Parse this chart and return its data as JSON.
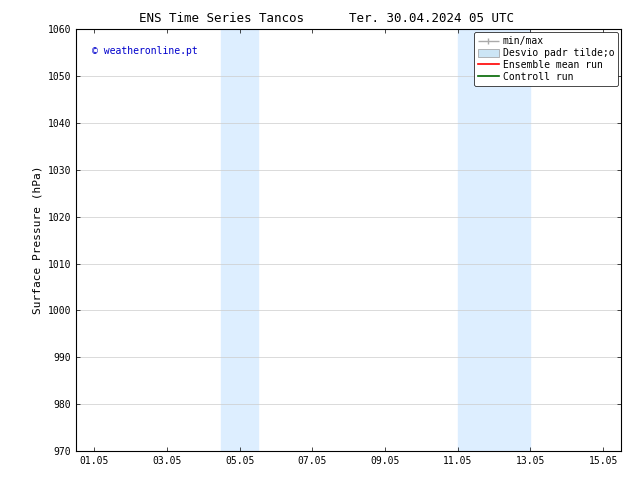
{
  "title": "ENS Time Series Tancos",
  "title2": "Ter. 30.04.2024 05 UTC",
  "ylabel": "Surface Pressure (hPa)",
  "ylim": [
    970,
    1060
  ],
  "yticks": [
    970,
    980,
    990,
    1000,
    1010,
    1020,
    1030,
    1040,
    1050,
    1060
  ],
  "xlim": [
    0.5,
    15.5
  ],
  "xtick_labels": [
    "01.05",
    "03.05",
    "05.05",
    "07.05",
    "09.05",
    "11.05",
    "13.05",
    "15.05"
  ],
  "xtick_positions": [
    1,
    3,
    5,
    7,
    9,
    11,
    13,
    15
  ],
  "shaded_regions": [
    {
      "xmin": 4.5,
      "xmax": 5.5,
      "color": "#ddeeff"
    },
    {
      "xmin": 11.0,
      "xmax": 13.0,
      "color": "#ddeeff"
    }
  ],
  "watermark": "© weatheronline.pt",
  "watermark_color": "#0000cc",
  "background_color": "#ffffff",
  "plot_bg_color": "#ffffff",
  "grid_color": "#cccccc",
  "title_fontsize": 9,
  "axis_label_fontsize": 8,
  "tick_fontsize": 7,
  "watermark_fontsize": 7,
  "legend_fontsize": 7,
  "legend_labels": [
    "min/max",
    "Desvio padr tilde;o",
    "Ensemble mean run",
    "Controll run"
  ],
  "legend_minmax_color": "#aaaaaa",
  "legend_desvio_color": "#cce5f5",
  "legend_ensemble_color": "#ff0000",
  "legend_control_color": "#006600"
}
